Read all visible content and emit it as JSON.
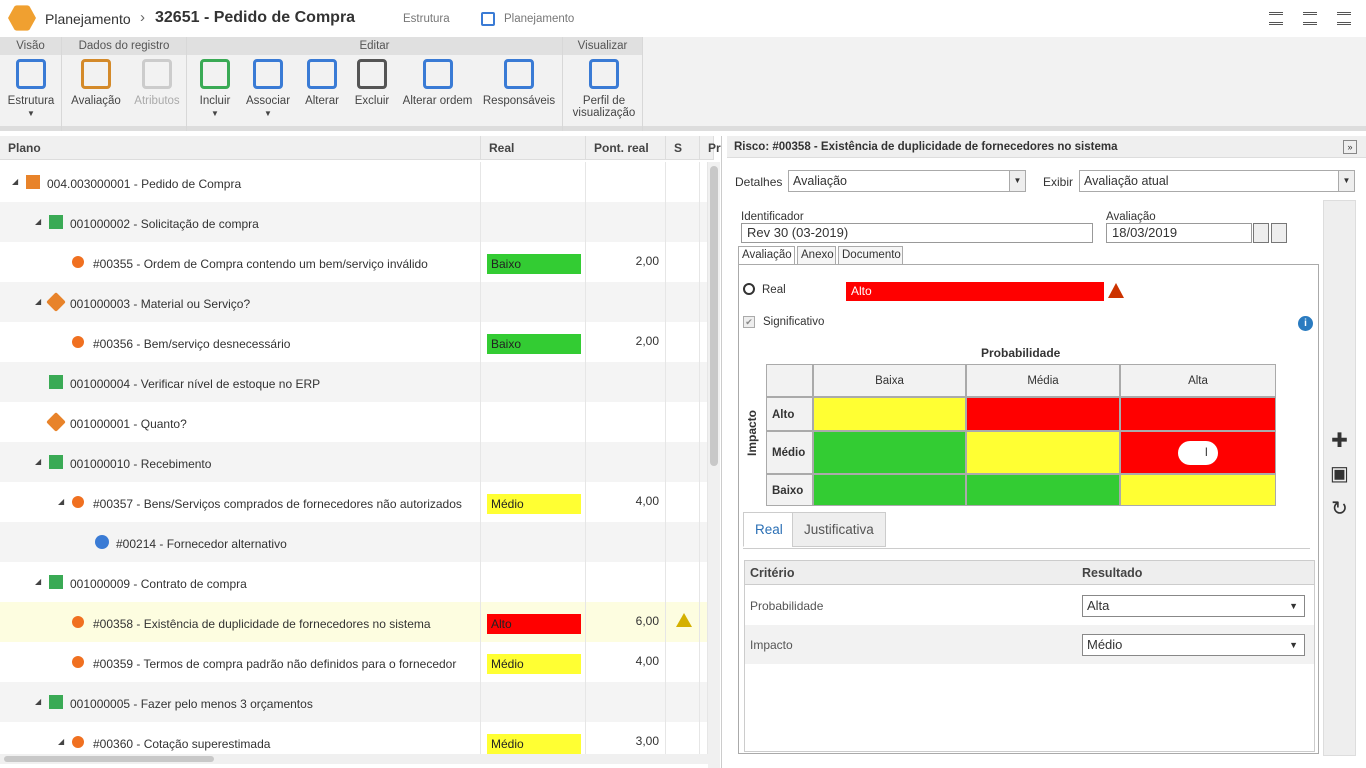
{
  "header": {
    "app": "Planejamento",
    "title": "32651 - Pedido de Compra",
    "links": [
      "Estrutura",
      "Planejamento"
    ]
  },
  "toolbar": {
    "groups": [
      {
        "label": "Visão",
        "buttons": [
          {
            "label": "Estrutura",
            "menu": true
          }
        ]
      },
      {
        "label": "Dados do registro",
        "buttons": [
          {
            "label": "Avaliação"
          },
          {
            "label": "Atributos",
            "disabled": true
          }
        ]
      },
      {
        "label": "Editar",
        "buttons": [
          {
            "label": "Incluir",
            "menu": true
          },
          {
            "label": "Associar",
            "menu": true
          },
          {
            "label": "Alterar"
          },
          {
            "label": "Excluir"
          },
          {
            "label": "Alterar ordem"
          },
          {
            "label": "Responsáveis"
          }
        ]
      },
      {
        "label": "Visualizar",
        "buttons": [
          {
            "label": "Perfil de visualização"
          }
        ]
      }
    ]
  },
  "tree": {
    "columns": [
      "Plano",
      "Real",
      "Pont. real",
      "S",
      "Pr"
    ],
    "rows": [
      {
        "label": "004.003000001 - Pedido de Compra",
        "depth": 0,
        "kind": "process",
        "expanded": true
      },
      {
        "label": "001000002 - Solicitação de compra",
        "depth": 1,
        "kind": "task",
        "expanded": true
      },
      {
        "label": "#00355 - Ordem de Compra contendo um bem/serviço inválido",
        "depth": 2,
        "kind": "risk",
        "real": "Baixo",
        "real_color": "#33cc33",
        "score": "2,00"
      },
      {
        "label": "001000003 - Material ou Serviço?",
        "depth": 1,
        "kind": "decision",
        "expanded": true
      },
      {
        "label": "#00356 - Bem/serviço desnecessário",
        "depth": 2,
        "kind": "risk",
        "real": "Baixo",
        "real_color": "#33cc33",
        "score": "2,00"
      },
      {
        "label": "001000004 - Verificar nível de estoque no ERP",
        "depth": 1,
        "kind": "task"
      },
      {
        "label": "001000001 - Quanto?",
        "depth": 1,
        "kind": "decision"
      },
      {
        "label": "001000010 - Recebimento",
        "depth": 1,
        "kind": "task",
        "expanded": true
      },
      {
        "label": "#00357 - Bens/Serviços comprados de fornecedores não autorizados",
        "depth": 2,
        "kind": "risk",
        "expanded": true,
        "real": "Médio",
        "real_color": "#ffff33",
        "score": "4,00"
      },
      {
        "label": "#00214 - Fornecedor alternativo",
        "depth": 3,
        "kind": "control"
      },
      {
        "label": "001000009 - Contrato de compra",
        "depth": 1,
        "kind": "task",
        "expanded": true
      },
      {
        "label": "#00358 - Existência de duplicidade de fornecedores no sistema",
        "depth": 2,
        "kind": "risk",
        "real": "Alto",
        "real_color": "#ff0000",
        "score": "6,00",
        "warning": true,
        "selected": true
      },
      {
        "label": "#00359 - Termos de compra padrão não definidos para o fornecedor",
        "depth": 2,
        "kind": "risk",
        "real": "Médio",
        "real_color": "#ffff33",
        "score": "4,00"
      },
      {
        "label": "001000005 - Fazer pelo menos 3 orçamentos",
        "depth": 1,
        "kind": "task",
        "expanded": true
      },
      {
        "label": "#00360 - Cotação superestimada",
        "depth": 2,
        "kind": "risk",
        "expanded": true,
        "real": "Médio",
        "real_color": "#ffff33",
        "score": "3,00"
      }
    ]
  },
  "detail": {
    "title": "Risco: #00358 - Existência de duplicidade de fornecedores no sistema",
    "details_label": "Detalhes",
    "details_value": "Avaliação",
    "show_label": "Exibir",
    "show_value": "Avaliação atual",
    "id_label": "Identificador",
    "id_value": "Rev 30 (03-2019)",
    "date_label": "Avaliação",
    "date_value": "18/03/2019",
    "tabs": [
      "Avaliação",
      "Anexo",
      "Documento"
    ],
    "real_label": "Real",
    "real_value": "Alto",
    "real_color": "#ff0000",
    "significant": "Significativo",
    "matrix": {
      "title": "Probabilidade",
      "axis": "Impacto",
      "columns": [
        "Baixa",
        "Média",
        "Alta"
      ],
      "rows": [
        {
          "label": "Alto",
          "colors": [
            "#ffff33",
            "#ff0000",
            "#ff0000"
          ]
        },
        {
          "label": "Médio",
          "colors": [
            "#33cc33",
            "#ffff33",
            "#ff0000"
          ]
        },
        {
          "label": "Baixo",
          "colors": [
            "#33cc33",
            "#33cc33",
            "#ffff33"
          ]
        }
      ],
      "marker": {
        "row": 1,
        "col": 2,
        "text": "I"
      }
    },
    "subtabs": [
      "Real",
      "Justificativa"
    ],
    "criteria": {
      "headers": [
        "Critério",
        "Resultado"
      ],
      "rows": [
        [
          "Probabilidade",
          "Alta"
        ],
        [
          "Impacto",
          "Médio"
        ]
      ]
    }
  }
}
